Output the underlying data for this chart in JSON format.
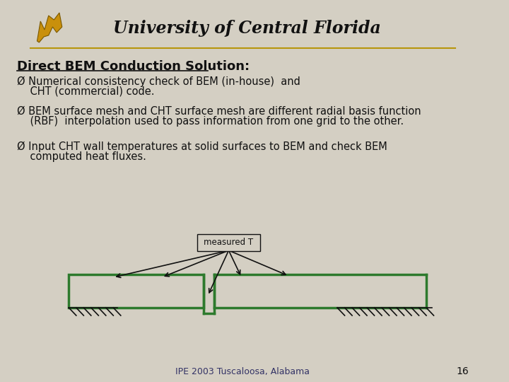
{
  "bg_color": "#d4cfc3",
  "title": "Direct BEM Conduction Solution:",
  "bullet1_line1": "Ø Numerical consistency check of BEM (in-house)  and",
  "bullet1_line2": "    CHT (commercial) code.",
  "bullet2_line1": "Ø BEM surface mesh and CHT surface mesh are different radial basis function",
  "bullet2_line2": "    (RBF)  interpolation used to pass information from one grid to the other.",
  "bullet3_line1": "Ø Input CHT wall temperatures at solid surfaces to BEM and check BEM",
  "bullet3_line2": "    computed heat fluxes.",
  "footer": "IPE 2003 Tuscaloosa, Alabama",
  "page_num": "16",
  "ucf_text": "University of Central Florida",
  "measured_t_label": "measured T",
  "green_color": "#2d7a2d",
  "arrow_color": "#111111",
  "hatch_color": "#111111",
  "header_line_color": "#b8960c",
  "ucf_gold": "#c9900c",
  "text_color": "#111111",
  "footer_color": "#333366"
}
